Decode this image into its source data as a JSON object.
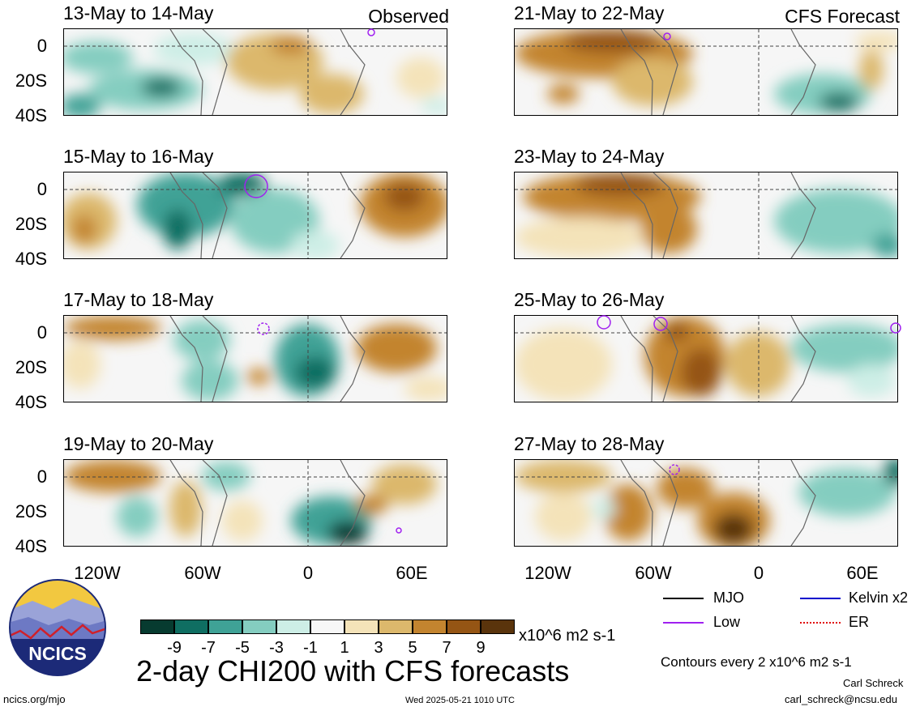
{
  "panels": [
    {
      "title": "13-May to 14-May",
      "tag": "Observed"
    },
    {
      "title": "21-May to 22-May",
      "tag": "CFS Forecast"
    },
    {
      "title": "15-May to 16-May",
      "tag": ""
    },
    {
      "title": "23-May to 24-May",
      "tag": ""
    },
    {
      "title": "17-May to 18-May",
      "tag": ""
    },
    {
      "title": "25-May to 26-May",
      "tag": ""
    },
    {
      "title": "19-May to 20-May",
      "tag": ""
    },
    {
      "title": "27-May to 28-May",
      "tag": ""
    }
  ],
  "y_axis_labels": [
    "0",
    "20S",
    "40S"
  ],
  "x_axis_labels": [
    "120W",
    "60W",
    "0",
    "60E"
  ],
  "colorbar": {
    "colors": [
      "#073b30",
      "#0f6e62",
      "#3fa296",
      "#84cdc0",
      "#cdeee6",
      "#f7f7f7",
      "#f4e3b9",
      "#dcb86c",
      "#c3842f",
      "#955514",
      "#5a340c"
    ],
    "labels": [
      "-9",
      "-7",
      "-5",
      "-3",
      "-1",
      "1",
      "3",
      "5",
      "7",
      "9"
    ],
    "units": "x10^6 m2 s-1"
  },
  "legend": {
    "items": [
      {
        "label": "MJO",
        "color": "#000000"
      },
      {
        "label": "Kelvin x2",
        "color": "#0000cc"
      },
      {
        "label": "Low",
        "color": "#a020f0"
      },
      {
        "label": "ER",
        "color": "#e00000"
      }
    ],
    "contours": "Contours every 2 x10^6 m2 s-1"
  },
  "main_title": "2-day CHI200 with CFS forecasts",
  "logo_text": "NCICS",
  "footer": {
    "left": "ncics.org/mjo",
    "center": "Wed 2025-05-21 1010 UTC",
    "author": "Carl Schreck",
    "email": "carl_schreck@ncsu.edu"
  }
}
